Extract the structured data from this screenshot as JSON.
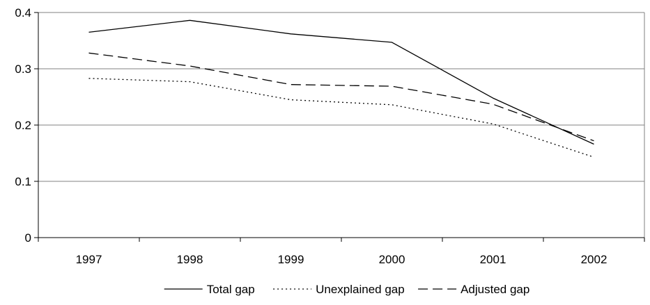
{
  "chart_data": {
    "type": "line",
    "categories": [
      "1997",
      "1998",
      "1999",
      "2000",
      "2001",
      "2002"
    ],
    "ylim": [
      0,
      0.4
    ],
    "yticks": [
      0,
      0.1,
      0.2,
      0.3,
      0.4
    ],
    "ytick_labels": [
      "0",
      "0.1",
      "0.2",
      "0.3",
      "0.4"
    ],
    "grid": true,
    "legend_position": "bottom",
    "series": [
      {
        "name": "Total gap",
        "style": "solid",
        "color": "#000000",
        "values": [
          0.365,
          0.386,
          0.362,
          0.347,
          0.248,
          0.166
        ]
      },
      {
        "name": "Unexplained gap",
        "style": "dotted",
        "color": "#000000",
        "values": [
          0.283,
          0.277,
          0.245,
          0.236,
          0.202,
          0.143
        ]
      },
      {
        "name": "Adjusted gap",
        "style": "dashed",
        "color": "#000000",
        "values": [
          0.328,
          0.305,
          0.272,
          0.269,
          0.237,
          0.172
        ]
      }
    ]
  }
}
